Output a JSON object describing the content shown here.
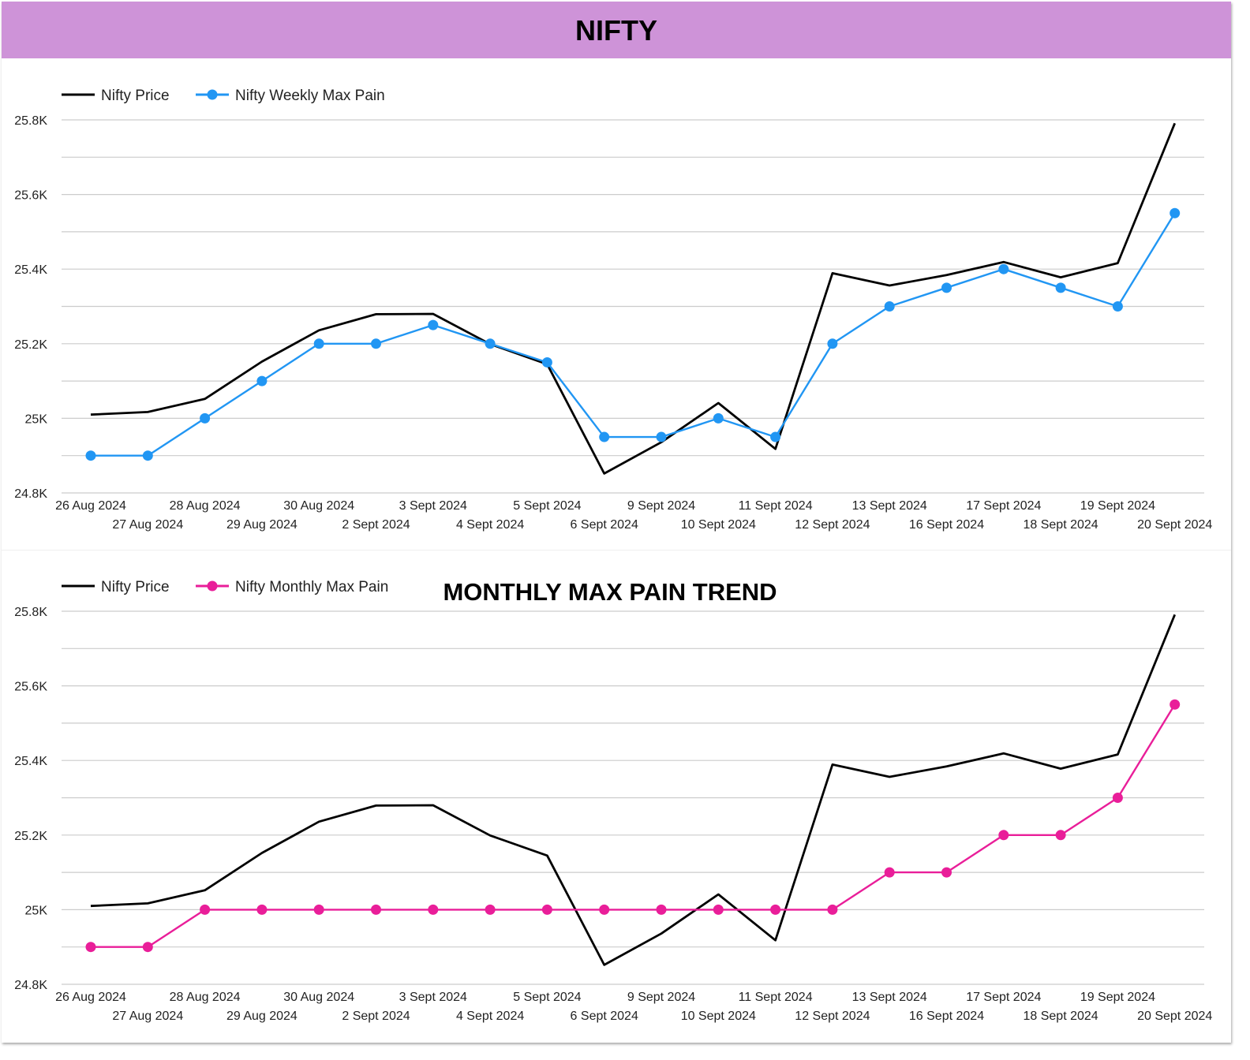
{
  "header": {
    "title": "NIFTY"
  },
  "chart_data": [
    {
      "type": "line",
      "title": "",
      "categories": [
        "26 Aug 2024",
        "27 Aug 2024",
        "28 Aug 2024",
        "29 Aug 2024",
        "30 Aug 2024",
        "2 Sept 2024",
        "3 Sept 2024",
        "4 Sept 2024",
        "5 Sept 2024",
        "6 Sept 2024",
        "9 Sept 2024",
        "10 Sept 2024",
        "11 Sept 2024",
        "12 Sept 2024",
        "13 Sept 2024",
        "16 Sept 2024",
        "17 Sept 2024",
        "18 Sept 2024",
        "19 Sept 2024",
        "20 Sept 2024"
      ],
      "series": [
        {
          "name": "Nifty Price",
          "color": "#000000",
          "markers": false,
          "values": [
            25010,
            25017,
            25052,
            25152,
            25236,
            25279,
            25280,
            25199,
            25145,
            24852,
            24936,
            25041,
            24918,
            25389,
            25356,
            25384,
            25419,
            25378,
            25416,
            25791
          ]
        },
        {
          "name": "Nifty Weekly Max Pain",
          "color": "#2196f3",
          "markers": true,
          "values": [
            24900,
            24900,
            25000,
            25100,
            25200,
            25200,
            25250,
            25200,
            25150,
            24950,
            24950,
            25000,
            24950,
            25200,
            25300,
            25350,
            25400,
            25350,
            25300,
            25550
          ]
        }
      ],
      "yticks": [
        "24.8K",
        "25K",
        "25.2K",
        "25.4K",
        "25.6K",
        "25.8K"
      ],
      "ylim": [
        24800,
        25800
      ],
      "grid": true,
      "legend_position": "top-left"
    },
    {
      "type": "line",
      "title": "MONTHLY MAX PAIN TREND",
      "categories": [
        "26 Aug 2024",
        "27 Aug 2024",
        "28 Aug 2024",
        "29 Aug 2024",
        "30 Aug 2024",
        "2 Sept 2024",
        "3 Sept 2024",
        "4 Sept 2024",
        "5 Sept 2024",
        "6 Sept 2024",
        "9 Sept 2024",
        "10 Sept 2024",
        "11 Sept 2024",
        "12 Sept 2024",
        "13 Sept 2024",
        "16 Sept 2024",
        "17 Sept 2024",
        "18 Sept 2024",
        "19 Sept 2024",
        "20 Sept 2024"
      ],
      "series": [
        {
          "name": "Nifty Price",
          "color": "#000000",
          "markers": false,
          "values": [
            25010,
            25017,
            25052,
            25152,
            25236,
            25279,
            25280,
            25199,
            25145,
            24852,
            24936,
            25041,
            24918,
            25389,
            25356,
            25384,
            25419,
            25378,
            25416,
            25791
          ]
        },
        {
          "name": "Nifty Monthly Max Pain",
          "color": "#e91e99",
          "markers": true,
          "values": [
            24900,
            24900,
            25000,
            25000,
            25000,
            25000,
            25000,
            25000,
            25000,
            25000,
            25000,
            25000,
            25000,
            25000,
            25100,
            25100,
            25200,
            25200,
            25300,
            25550
          ]
        }
      ],
      "yticks": [
        "24.8K",
        "25K",
        "25.2K",
        "25.4K",
        "25.6K",
        "25.8K"
      ],
      "ylim": [
        24800,
        25800
      ],
      "grid": true,
      "legend_position": "top-left"
    }
  ]
}
